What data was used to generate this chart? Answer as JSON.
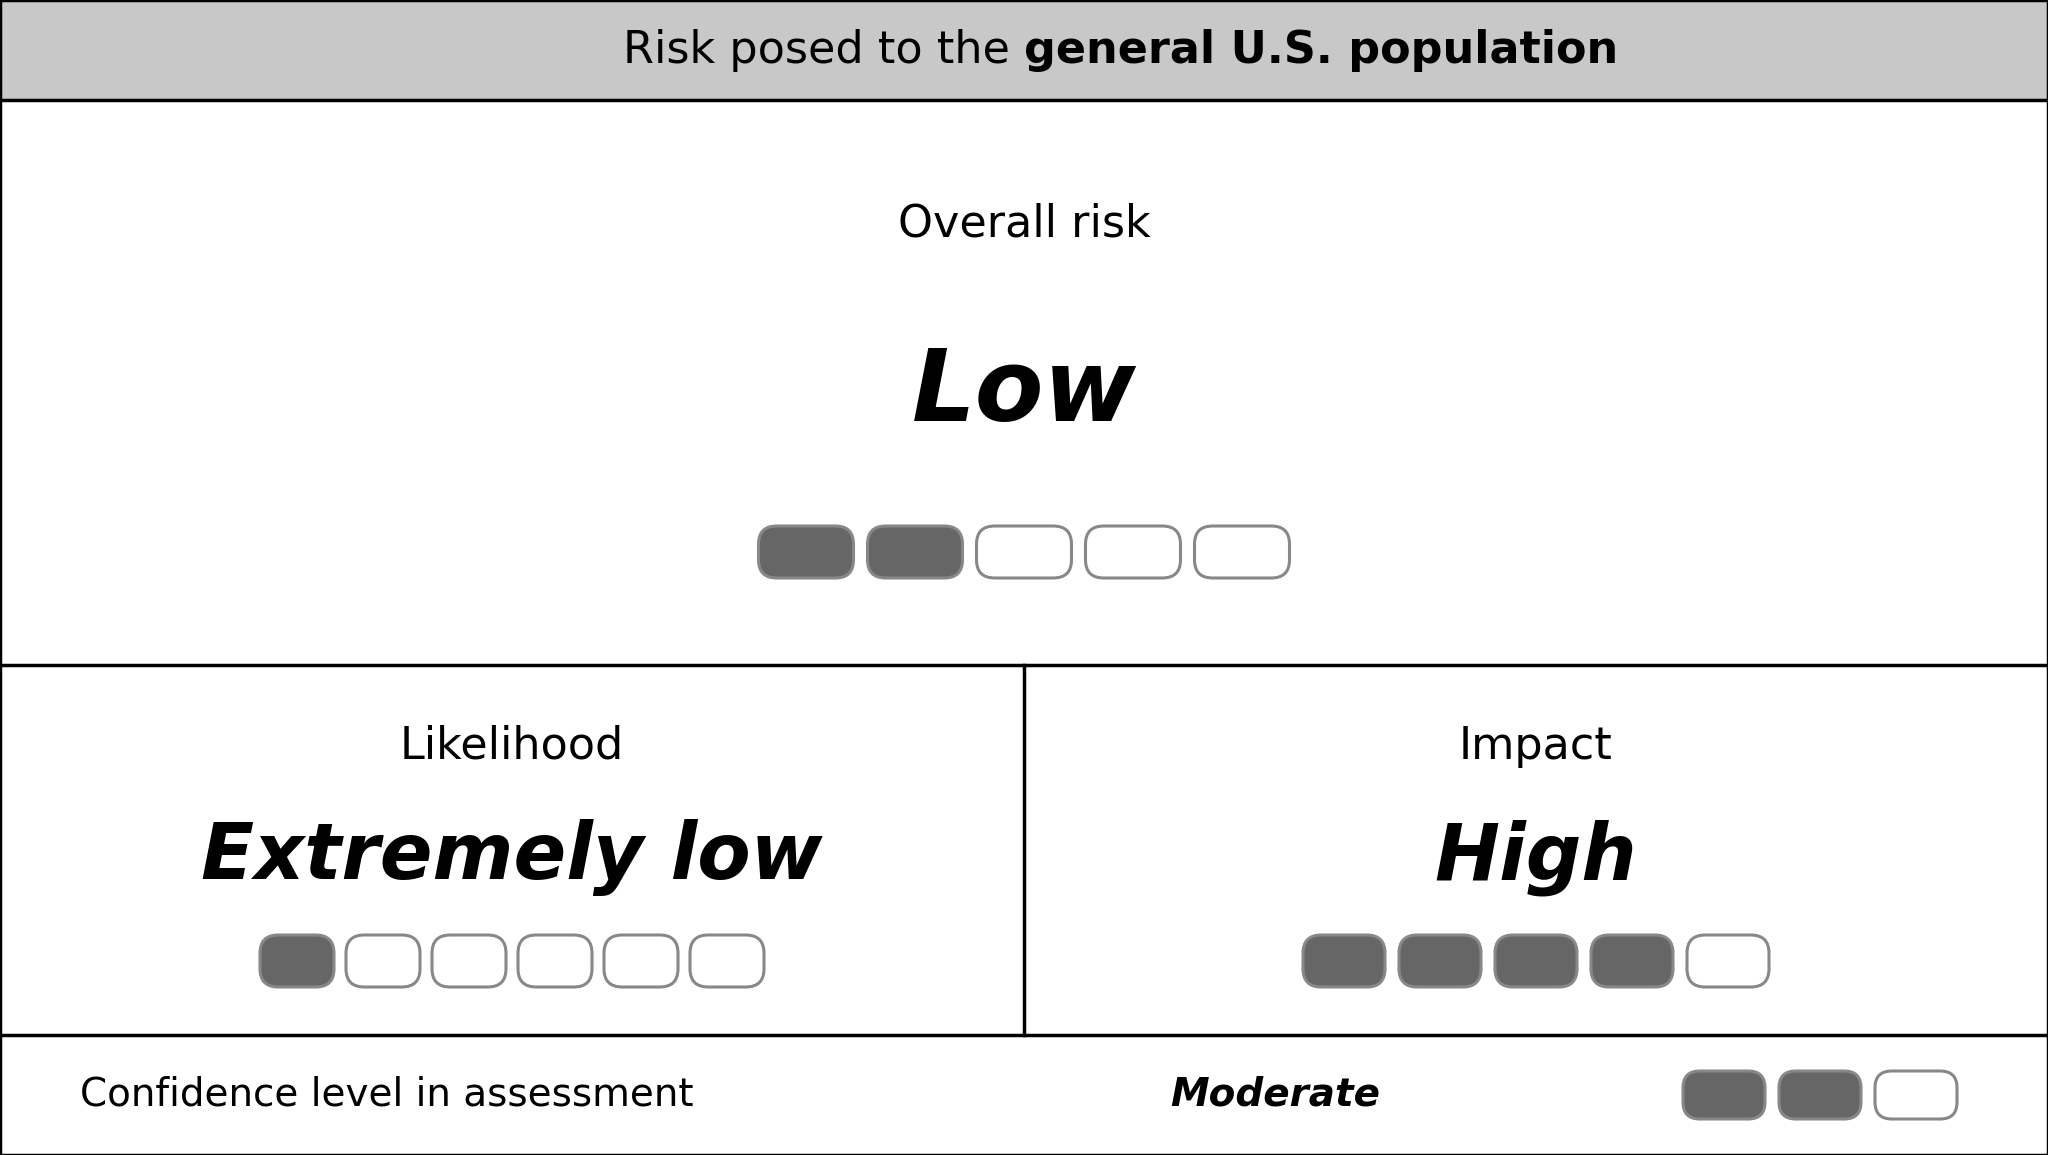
{
  "title_text_normal": "Risk posed to the ",
  "title_text_bold": "general U.S. population",
  "title_bg": "#c8c8c8",
  "title_fontsize": 32,
  "overall_label": "Overall risk",
  "overall_value": "Low",
  "overall_filled": 2,
  "overall_total": 5,
  "likelihood_label": "Likelihood",
  "likelihood_value": "Extremely low",
  "likelihood_filled": 1,
  "likelihood_total": 6,
  "impact_label": "Impact",
  "impact_value": "High",
  "impact_filled": 4,
  "impact_total": 5,
  "confidence_label": "Confidence level in assessment",
  "confidence_value": "Moderate",
  "confidence_filled": 2,
  "confidence_total": 3,
  "filled_color": "#666666",
  "empty_color": "#ffffff",
  "border_color": "#888888",
  "box_border_color": "#000000",
  "overall_value_fontsize": 72,
  "label_fontsize": 32,
  "mid_value_fontsize": 56,
  "confidence_fontsize": 28
}
